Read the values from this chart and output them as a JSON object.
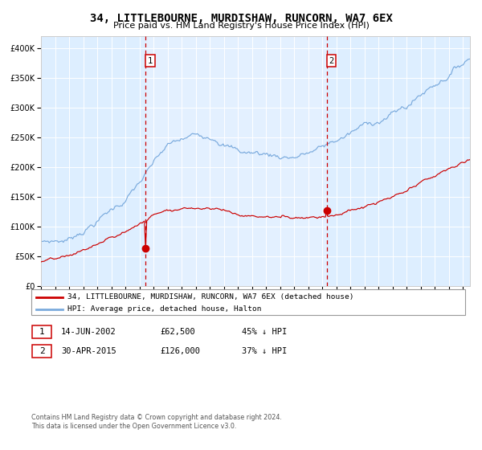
{
  "title": "34, LITTLEBOURNE, MURDISHAW, RUNCORN, WA7 6EX",
  "subtitle": "Price paid vs. HM Land Registry's House Price Index (HPI)",
  "legend_line1": "34, LITTLEBOURNE, MURDISHAW, RUNCORN, WA7 6EX (detached house)",
  "legend_line2": "HPI: Average price, detached house, Halton",
  "annotation1_label": "1",
  "annotation1_date": "14-JUN-2002",
  "annotation1_price": "£62,500",
  "annotation1_pct": "45% ↓ HPI",
  "annotation2_label": "2",
  "annotation2_date": "30-APR-2015",
  "annotation2_price": "£126,000",
  "annotation2_pct": "37% ↓ HPI",
  "footer1": "Contains HM Land Registry data © Crown copyright and database right 2024.",
  "footer2": "This data is licensed under the Open Government Licence v3.0.",
  "red_color": "#cc0000",
  "blue_color": "#7aaadd",
  "bg_color": "#ddeeff",
  "highlight_bg": "#e8f2ff",
  "vline1_x": 2002.45,
  "vline2_x": 2015.33,
  "dot1_x": 2002.45,
  "dot1_y": 62500,
  "dot2_x": 2015.33,
  "dot2_y": 126000,
  "ylim": [
    0,
    420000
  ],
  "xlim": [
    1995.0,
    2025.5
  ]
}
